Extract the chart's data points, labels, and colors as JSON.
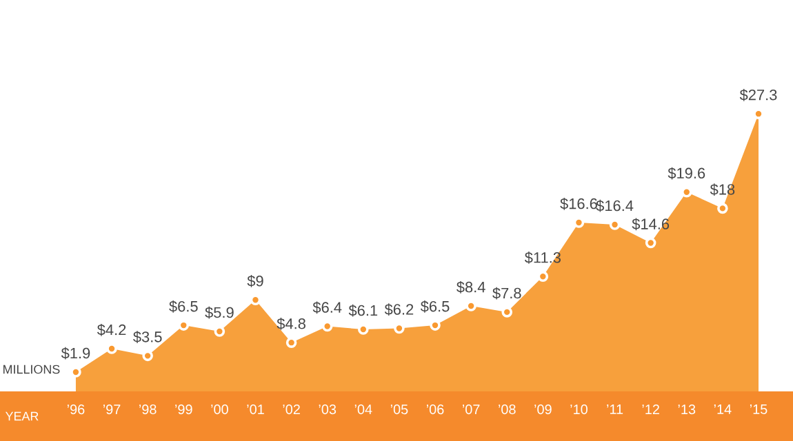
{
  "chart_data": {
    "type": "area",
    "xlabel": "YEAR",
    "ylabel": "MILLIONS",
    "categories": [
      "’96",
      "’97",
      "’98",
      "’99",
      "’00",
      "’01",
      "’02",
      "’03",
      "’04",
      "’05",
      "’06",
      "’07",
      "’08",
      "’09",
      "’10",
      "’11",
      "’12",
      "’13",
      "’14",
      "’15"
    ],
    "values": [
      1.9,
      4.2,
      3.5,
      6.5,
      5.9,
      9,
      4.8,
      6.4,
      6.1,
      6.2,
      6.5,
      8.4,
      7.8,
      11.3,
      16.6,
      16.4,
      14.6,
      19.6,
      18,
      27.3
    ],
    "value_labels": [
      "$1.9",
      "$4.2",
      "$3.5",
      "$6.5",
      "$5.9",
      "$9",
      "$4.8",
      "$6.4",
      "$6.1",
      "$6.2",
      "$6.5",
      "$8.4",
      "$7.8",
      "$11.3",
      "$16.6",
      "$16.4",
      "$14.6",
      "$19.6",
      "$18",
      "$27.3"
    ],
    "color": "#f7a03c",
    "marker": "circle",
    "tick_labels": "x",
    "grid": false
  }
}
